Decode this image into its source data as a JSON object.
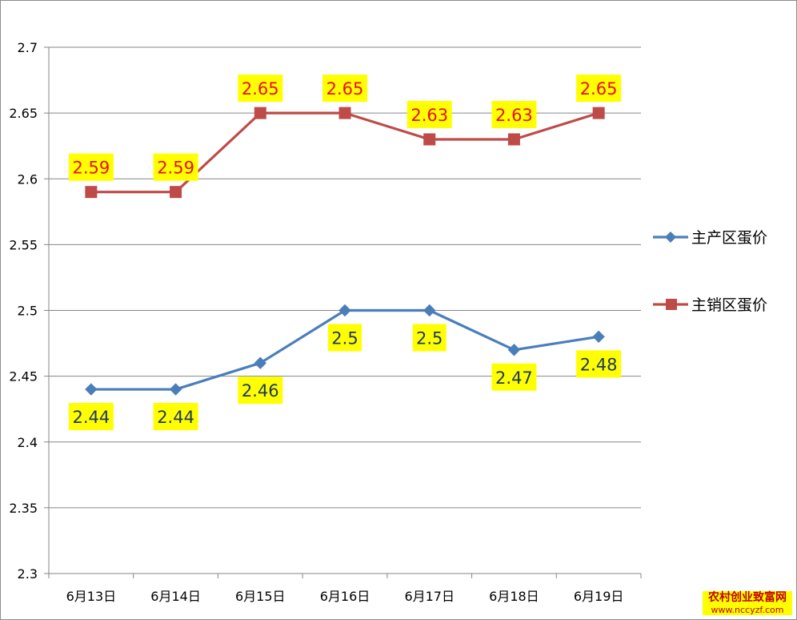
{
  "chart_data": {
    "type": "line",
    "categories": [
      "6月13日",
      "6月14日",
      "6月15日",
      "6月16日",
      "6月17日",
      "6月18日",
      "6月19日"
    ],
    "ylim": [
      2.3,
      2.7
    ],
    "yticks": [
      "2.3",
      "2.35",
      "2.4",
      "2.45",
      "2.5",
      "2.55",
      "2.6",
      "2.65",
      "2.7"
    ],
    "grid": true,
    "legend_position": "right",
    "series": [
      {
        "name": "主产区蛋价",
        "color": "#4a7ebb",
        "marker": "diamond",
        "values": [
          2.44,
          2.44,
          2.46,
          2.5,
          2.5,
          2.47,
          2.48
        ],
        "labels": [
          "2.44",
          "2.44",
          "2.46",
          "2.5",
          "2.5",
          "2.47",
          "2.48"
        ],
        "label_position": "below"
      },
      {
        "name": "主销区蛋价",
        "color": "#be4b48",
        "marker": "square",
        "values": [
          2.59,
          2.59,
          2.65,
          2.65,
          2.63,
          2.63,
          2.65
        ],
        "labels": [
          "2.59",
          "2.59",
          "2.65",
          "2.65",
          "2.63",
          "2.63",
          "2.65"
        ],
        "label_position": "above"
      }
    ],
    "data_label_background": "#ffff00"
  },
  "watermark": {
    "line1": "农村创业致富网",
    "line2": "www.nccyzf.com"
  }
}
